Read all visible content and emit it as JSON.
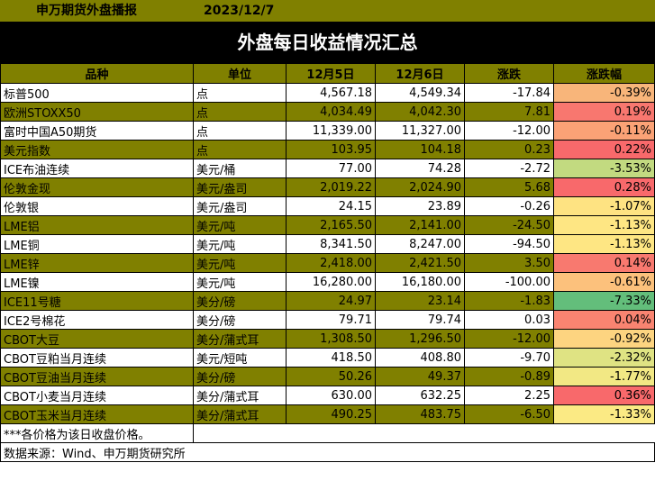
{
  "header": {
    "source_label": "申万期货外盘播报",
    "date": "2023/12/7"
  },
  "title": "外盘每日收益情况汇总",
  "columns": [
    "品种",
    "单位",
    "12月5日",
    "12月6日",
    "涨跌",
    "涨跌幅"
  ],
  "rows": [
    {
      "name": "标普500",
      "unit": "点",
      "d1": "4,567.18",
      "d2": "4,549.34",
      "chg": "-17.84",
      "pct": "-0.39%",
      "pct_color": "#F8B57A",
      "shade": "white"
    },
    {
      "name": "欧洲STOXX50",
      "unit": "点",
      "d1": "4,034.49",
      "d2": "4,042.30",
      "chg": "7.81",
      "pct": "0.19%",
      "pct_color": "#F8776F",
      "shade": "olive"
    },
    {
      "name": "富时中国A50期货",
      "unit": "点",
      "d1": "11,339.00",
      "d2": "11,327.00",
      "chg": "-12.00",
      "pct": "-0.11%",
      "pct_color": "#FBA276",
      "shade": "white"
    },
    {
      "name": "美元指数",
      "unit": "点",
      "d1": "103.95",
      "d2": "104.18",
      "chg": "0.23",
      "pct": "0.22%",
      "pct_color": "#F8696B",
      "shade": "olive"
    },
    {
      "name": "ICE布油连续",
      "unit": "美元/桶",
      "d1": "77.00",
      "d2": "74.28",
      "chg": "-2.72",
      "pct": "-3.53%",
      "pct_color": "#C2DA80",
      "shade": "white"
    },
    {
      "name": "伦敦金现",
      "unit": "美元/盎司",
      "d1": "2,019.22",
      "d2": "2,024.90",
      "chg": "5.68",
      "pct": "0.28%",
      "pct_color": "#F8696B",
      "shade": "olive"
    },
    {
      "name": "伦敦银",
      "unit": "美元/盎司",
      "d1": "24.15",
      "d2": "23.89",
      "chg": "-0.26",
      "pct": "-1.07%",
      "pct_color": "#FEE382",
      "shade": "white"
    },
    {
      "name": "LME铝",
      "unit": "美元/吨",
      "d1": "2,165.50",
      "d2": "2,141.00",
      "chg": "-24.50",
      "pct": "-1.13%",
      "pct_color": "#FEE683",
      "shade": "olive"
    },
    {
      "name": "LME铜",
      "unit": "美元/吨",
      "d1": "8,341.50",
      "d2": "8,247.00",
      "chg": "-94.50",
      "pct": "-1.13%",
      "pct_color": "#FEE683",
      "shade": "white"
    },
    {
      "name": "LME锌",
      "unit": "美元/吨",
      "d1": "2,418.00",
      "d2": "2,421.50",
      "chg": "3.50",
      "pct": "0.14%",
      "pct_color": "#F8796F",
      "shade": "olive"
    },
    {
      "name": "LME镍",
      "unit": "美元/吨",
      "d1": "16,280.00",
      "d2": "16,180.00",
      "chg": "-100.00",
      "pct": "-0.61%",
      "pct_color": "#FCC17C",
      "shade": "white"
    },
    {
      "name": "ICE11号糖",
      "unit": "美分/磅",
      "d1": "24.97",
      "d2": "23.14",
      "chg": "-1.83",
      "pct": "-7.33%",
      "pct_color": "#63BE7B",
      "shade": "olive"
    },
    {
      "name": "ICE2号棉花",
      "unit": "美分/磅",
      "d1": "79.71",
      "d2": "79.74",
      "chg": "0.03",
      "pct": "0.04%",
      "pct_color": "#F98471",
      "shade": "white"
    },
    {
      "name": "CBOT大豆",
      "unit": "美分/蒲式耳",
      "d1": "1,308.50",
      "d2": "1,296.50",
      "chg": "-12.00",
      "pct": "-0.92%",
      "pct_color": "#FDD480",
      "shade": "olive"
    },
    {
      "name": "CBOT豆粕当月连续",
      "unit": "美元/短吨",
      "d1": "418.50",
      "d2": "408.80",
      "chg": "-9.70",
      "pct": "-2.32%",
      "pct_color": "#DFE383",
      "shade": "white"
    },
    {
      "name": "CBOT豆油当月连续",
      "unit": "美分/磅",
      "d1": "50.26",
      "d2": "49.37",
      "chg": "-0.89",
      "pct": "-1.77%",
      "pct_color": "#F2E884",
      "shade": "olive"
    },
    {
      "name": "CBOT小麦当月连续",
      "unit": "美分/蒲式耳",
      "d1": "630.00",
      "d2": "632.25",
      "chg": "2.25",
      "pct": "0.36%",
      "pct_color": "#F8696B",
      "shade": "white"
    },
    {
      "name": "CBOT玉米当月连续",
      "unit": "美分/蒲式耳",
      "d1": "490.25",
      "d2": "483.75",
      "chg": "-6.50",
      "pct": "-1.33%",
      "pct_color": "#FBEA84",
      "shade": "olive"
    }
  ],
  "footnote": "***各价格为该日收盘价格。",
  "source": "数据来源：Wind、申万期货研究所"
}
